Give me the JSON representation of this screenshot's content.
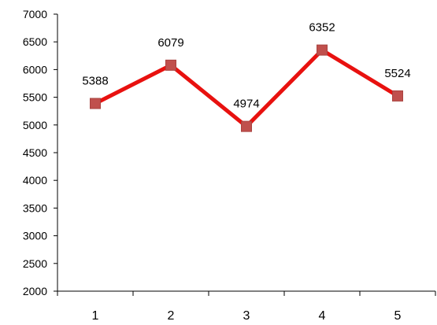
{
  "chart_data": {
    "type": "line",
    "categories": [
      "1",
      "2",
      "3",
      "4",
      "5"
    ],
    "series": [
      {
        "values": [
          5388,
          6079,
          4974,
          6352,
          5524
        ],
        "color": "#e8110f",
        "marker": "square",
        "marker_color": "#c0504d"
      }
    ],
    "data_labels": [
      "5388",
      "6079",
      "4974",
      "6352",
      "5524"
    ],
    "ylim": [
      2000,
      7000
    ],
    "yticks": [
      "2000",
      "2500",
      "3000",
      "3500",
      "4000",
      "4500",
      "5000",
      "5500",
      "6000",
      "6500",
      "7000"
    ],
    "title": "",
    "xlabel": "",
    "ylabel": "",
    "grid": false,
    "legend": "none"
  }
}
